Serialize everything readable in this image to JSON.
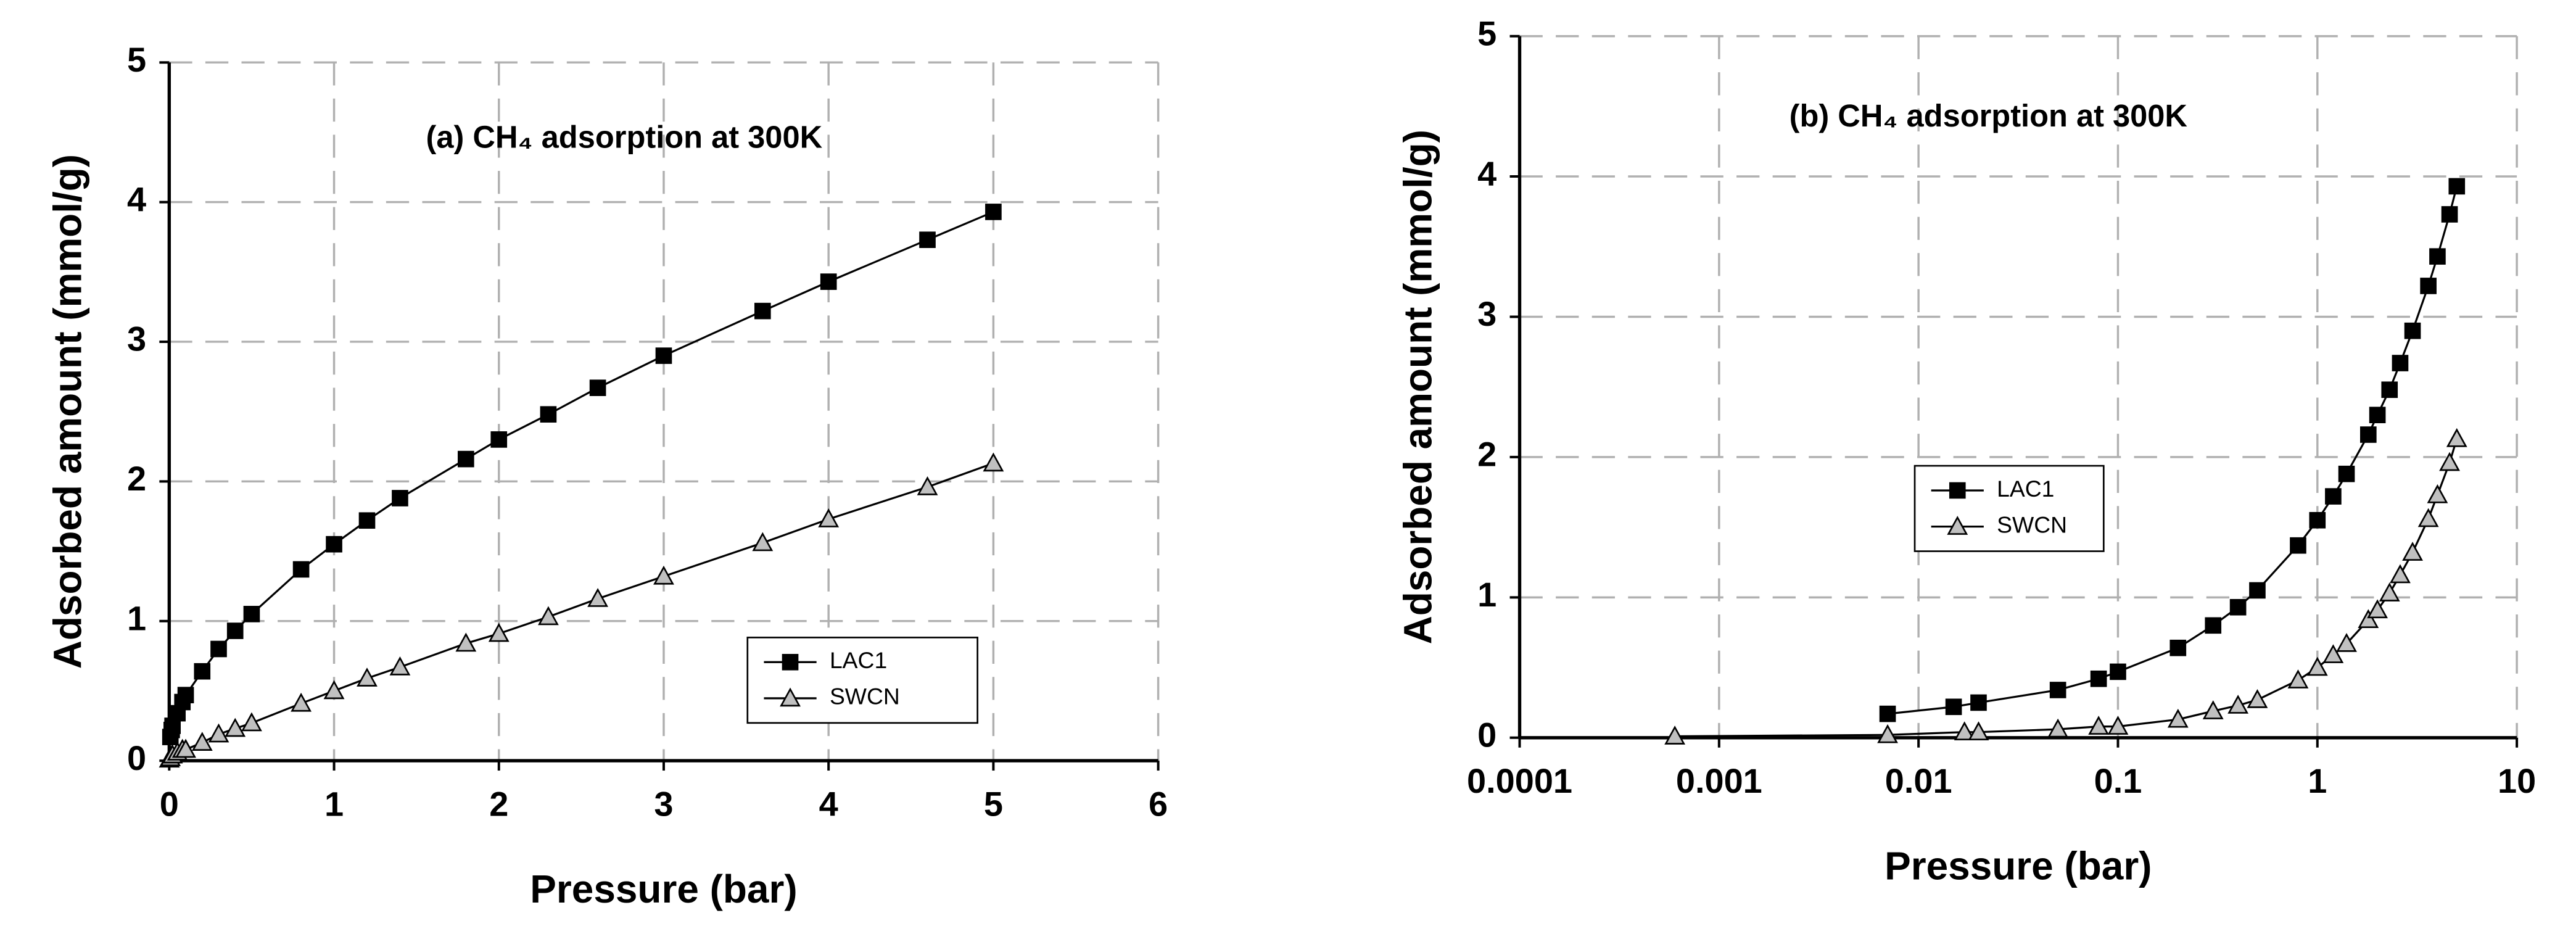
{
  "chart_data": [
    {
      "type": "line",
      "title": "(a) CH₄ adsorption at 300K",
      "x_label": "Pressure (bar)",
      "y_label": "Adsorbed amount (mmol/g)",
      "xlim": [
        0,
        6
      ],
      "xticks": [
        0,
        1,
        2,
        3,
        4,
        5,
        6
      ],
      "ylim": [
        0,
        5
      ],
      "yticks": [
        0,
        1,
        2,
        3,
        4,
        5
      ],
      "grid": true,
      "legend": "lower right",
      "series": [
        {
          "name": "LAC1",
          "color": "#000000",
          "marker": "square",
          "x": [
            0.007,
            0.015,
            0.02,
            0.05,
            0.08,
            0.1,
            0.2,
            0.3,
            0.4,
            0.5,
            0.8,
            1.0,
            1.2,
            1.4,
            1.8,
            2.0,
            2.3,
            2.6,
            3.0,
            3.6,
            4.0,
            4.6,
            5.0
          ],
          "values": [
            0.17,
            0.22,
            0.25,
            0.34,
            0.42,
            0.47,
            0.64,
            0.8,
            0.93,
            1.05,
            1.37,
            1.55,
            1.72,
            1.88,
            2.16,
            2.3,
            2.48,
            2.67,
            2.9,
            3.22,
            3.43,
            3.73,
            3.93
          ]
        },
        {
          "name": "SWCN",
          "color": "#c0c0c0",
          "marker": "triangle",
          "x": [
            0.0006,
            0.007,
            0.017,
            0.02,
            0.05,
            0.08,
            0.1,
            0.2,
            0.3,
            0.4,
            0.5,
            0.8,
            1.0,
            1.2,
            1.4,
            1.8,
            2.0,
            2.3,
            2.6,
            3.0,
            3.6,
            4.0,
            4.6,
            5.0
          ],
          "values": [
            0.01,
            0.02,
            0.04,
            0.04,
            0.06,
            0.08,
            0.08,
            0.13,
            0.19,
            0.23,
            0.27,
            0.41,
            0.5,
            0.59,
            0.67,
            0.84,
            0.91,
            1.03,
            1.16,
            1.32,
            1.56,
            1.73,
            1.96,
            2.13
          ]
        }
      ]
    },
    {
      "type": "line",
      "title": "(b) CH₄ adsorption at 300K",
      "x_label": "Pressure (bar)",
      "y_label": "Adsorbed amount (mmol/g)",
      "xscale": "log",
      "xlim": [
        0.0001,
        10
      ],
      "xticks": [
        0.0001,
        0.001,
        0.01,
        0.1,
        1,
        10
      ],
      "ylim": [
        0,
        5
      ],
      "yticks": [
        0,
        1,
        2,
        3,
        4,
        5
      ],
      "grid": true,
      "legend": "center",
      "series": [
        {
          "name": "LAC1",
          "color": "#000000",
          "marker": "square",
          "x": [
            0.007,
            0.015,
            0.02,
            0.05,
            0.08,
            0.1,
            0.2,
            0.3,
            0.4,
            0.5,
            0.8,
            1.0,
            1.2,
            1.4,
            1.8,
            2.0,
            2.3,
            2.6,
            3.0,
            3.6,
            4.0,
            4.6,
            5.0
          ],
          "values": [
            0.17,
            0.22,
            0.25,
            0.34,
            0.42,
            0.47,
            0.64,
            0.8,
            0.93,
            1.05,
            1.37,
            1.55,
            1.72,
            1.88,
            2.16,
            2.3,
            2.48,
            2.67,
            2.9,
            3.22,
            3.43,
            3.73,
            3.93
          ]
        },
        {
          "name": "SWCN",
          "color": "#c0c0c0",
          "marker": "triangle",
          "x": [
            0.0006,
            0.007,
            0.017,
            0.02,
            0.05,
            0.08,
            0.1,
            0.2,
            0.3,
            0.4,
            0.5,
            0.8,
            1.0,
            1.2,
            1.4,
            1.8,
            2.0,
            2.3,
            2.6,
            3.0,
            3.6,
            4.0,
            4.6,
            5.0
          ],
          "values": [
            0.01,
            0.02,
            0.04,
            0.04,
            0.06,
            0.08,
            0.08,
            0.13,
            0.19,
            0.23,
            0.27,
            0.41,
            0.5,
            0.59,
            0.67,
            0.84,
            0.91,
            1.03,
            1.16,
            1.32,
            1.56,
            1.73,
            1.96,
            2.13
          ]
        }
      ]
    }
  ]
}
